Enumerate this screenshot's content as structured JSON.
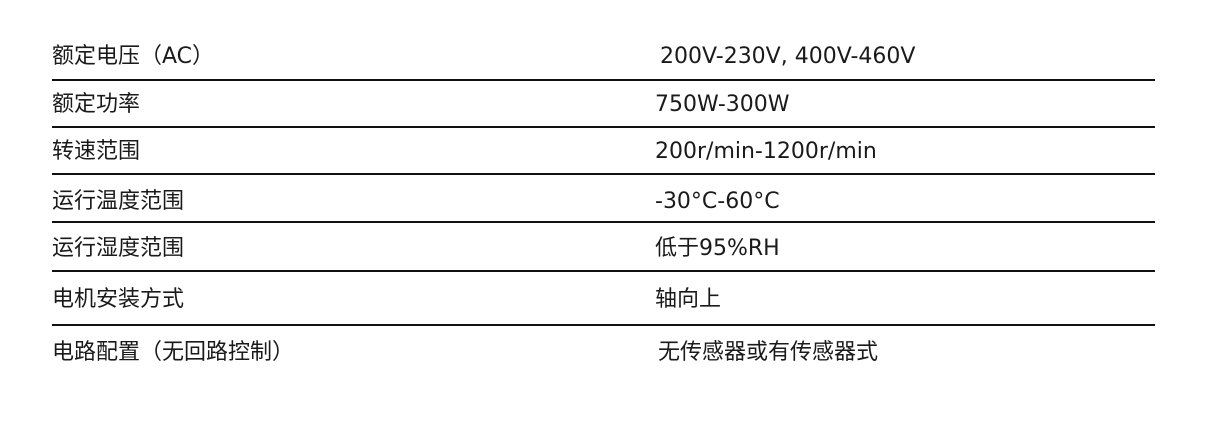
{
  "rows": [
    {
      "label": "额定电压（AC）",
      "value": "200V-230V, 400V-460V"
    },
    {
      "label": "额定功率",
      "value": "750W-300W"
    },
    {
      "label": "转速范围",
      "value": "200r/min-1200r/min"
    },
    {
      "label": "运行温度范围",
      "value": "-30°C-60°C"
    },
    {
      "label": "运行湿度范围",
      "value": "低于95%RH"
    },
    {
      "label": "电机安装方式",
      "value": "轴向上"
    },
    {
      "label": "电路配置（无回路控制）",
      "value": "无传感器或有传感器式"
    }
  ]
}
